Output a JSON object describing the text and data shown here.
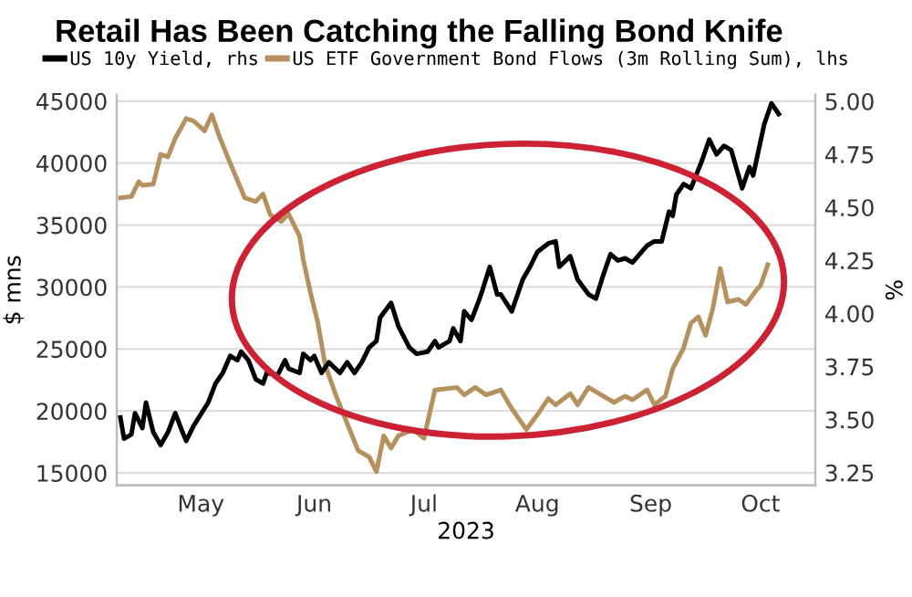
{
  "chart_data": {
    "type": "line",
    "title": "Retail Has Been Catching the Falling Bond Knife",
    "xlabel": "2023",
    "ylabel": "$ mns",
    "y2label": "%",
    "series": [
      {
        "name": "US 10y Yield, rhs",
        "color": "#000000",
        "axis": "y2",
        "x": [
          "2023-04-24",
          "2023-04-25",
          "2023-04-27",
          "2023-04-28",
          "2023-04-30",
          "2023-05-01",
          "2023-05-03",
          "2023-05-05",
          "2023-05-07",
          "2023-05-09",
          "2023-05-11",
          "2023-05-12",
          "2023-05-14",
          "2023-05-18",
          "2023-05-20",
          "2023-05-22",
          "2023-05-24",
          "2023-05-26",
          "2023-05-27",
          "2023-05-29",
          "2023-05-31",
          "2023-06-02",
          "2023-06-03",
          "2023-06-06",
          "2023-06-08",
          "2023-06-09",
          "2023-06-12",
          "2023-06-13",
          "2023-06-15",
          "2023-06-16",
          "2023-06-18",
          "2023-06-20",
          "2023-06-23",
          "2023-06-25",
          "2023-06-27",
          "2023-06-29",
          "2023-07-01",
          "2023-07-03",
          "2023-07-04",
          "2023-07-07",
          "2023-07-09",
          "2023-07-12",
          "2023-07-14",
          "2023-07-17",
          "2023-07-19",
          "2023-07-20",
          "2023-07-23",
          "2023-07-24",
          "2023-07-26",
          "2023-07-27",
          "2023-07-29",
          "2023-07-31",
          "2023-08-01",
          "2023-08-03",
          "2023-08-05",
          "2023-08-06",
          "2023-08-09",
          "2023-08-12",
          "2023-08-14",
          "2023-08-16",
          "2023-08-19",
          "2023-08-21",
          "2023-08-22",
          "2023-08-25",
          "2023-08-27",
          "2023-08-30",
          "2023-09-01",
          "2023-09-03",
          "2023-09-05",
          "2023-09-07",
          "2023-09-09",
          "2023-09-11",
          "2023-09-14",
          "2023-09-15",
          "2023-09-17",
          "2023-09-19",
          "2023-09-21",
          "2023-09-22",
          "2023-09-23",
          "2023-09-25",
          "2023-09-27",
          "2023-09-30",
          "2023-10-02",
          "2023-10-04",
          "2023-10-06",
          "2023-10-08",
          "2023-10-11",
          "2023-10-13",
          "2023-10-14",
          "2023-10-16",
          "2023-10-17",
          "2023-10-19",
          "2023-10-21"
        ],
        "values": [
          3.51,
          3.41,
          3.43,
          3.53,
          3.46,
          3.58,
          3.44,
          3.38,
          3.44,
          3.53,
          3.44,
          3.4,
          3.47,
          3.58,
          3.67,
          3.72,
          3.8,
          3.78,
          3.82,
          3.78,
          3.69,
          3.67,
          3.72,
          3.71,
          3.78,
          3.74,
          3.72,
          3.81,
          3.78,
          3.8,
          3.72,
          3.77,
          3.72,
          3.77,
          3.72,
          3.77,
          3.84,
          3.87,
          3.98,
          4.05,
          3.94,
          3.84,
          3.81,
          3.82,
          3.87,
          3.84,
          3.87,
          3.93,
          3.87,
          4.01,
          3.97,
          4.06,
          4.11,
          4.22,
          4.09,
          4.09,
          4.01,
          4.16,
          4.22,
          4.29,
          4.33,
          4.34,
          4.22,
          4.27,
          4.16,
          4.09,
          4.07,
          4.18,
          4.28,
          4.25,
          4.26,
          4.24,
          4.3,
          4.32,
          4.34,
          4.34,
          4.48,
          4.46,
          4.56,
          4.61,
          4.59,
          4.72,
          4.82,
          4.75,
          4.79,
          4.77,
          4.59,
          4.69,
          4.65,
          4.81,
          4.89,
          4.99,
          4.94
        ]
      },
      {
        "name": "US ETF Government Bond Flows (3m Rolling Sum), lhs",
        "color": "#b5915f",
        "x": [
          "2023-04-24",
          "2023-04-27",
          "2023-04-29",
          "2023-04-30",
          "2023-05-03",
          "2023-05-05",
          "2023-05-07",
          "2023-05-09",
          "2023-05-12",
          "2023-05-14",
          "2023-05-17",
          "2023-05-19",
          "2023-05-21",
          "2023-05-24",
          "2023-05-28",
          "2023-05-31",
          "2023-06-02",
          "2023-06-04",
          "2023-06-07",
          "2023-06-09",
          "2023-06-12",
          "2023-06-13",
          "2023-06-15",
          "2023-06-17",
          "2023-06-19",
          "2023-06-22",
          "2023-06-25",
          "2023-06-28",
          "2023-07-01",
          "2023-07-03",
          "2023-07-05",
          "2023-07-07",
          "2023-07-09",
          "2023-07-13",
          "2023-07-16",
          "2023-07-19",
          "2023-07-25",
          "2023-07-27",
          "2023-07-30",
          "2023-08-02",
          "2023-08-06",
          "2023-08-09",
          "2023-08-13",
          "2023-08-16",
          "2023-08-19",
          "2023-08-21",
          "2023-08-25",
          "2023-08-27",
          "2023-08-30",
          "2023-09-03",
          "2023-09-06",
          "2023-09-09",
          "2023-09-11",
          "2023-09-15",
          "2023-09-17",
          "2023-09-20",
          "2023-09-22",
          "2023-09-25",
          "2023-09-27",
          "2023-09-29",
          "2023-10-01",
          "2023-10-03",
          "2023-10-05",
          "2023-10-07",
          "2023-10-10",
          "2023-10-12",
          "2023-10-15",
          "2023-10-16",
          "2023-10-18"
        ],
        "values": [
          37200,
          37300,
          38500,
          38200,
          38300,
          40700,
          40500,
          42000,
          43600,
          43400,
          42600,
          43900,
          42200,
          40000,
          37200,
          36900,
          37500,
          35800,
          35300,
          35900,
          34100,
          32200,
          29500,
          27100,
          23700,
          21200,
          19000,
          16800,
          16300,
          15100,
          18000,
          17000,
          18000,
          18500,
          17800,
          21700,
          21900,
          21300,
          21900,
          21300,
          21700,
          20200,
          18500,
          19700,
          21000,
          20500,
          21400,
          20500,
          21900,
          21200,
          20700,
          21200,
          20900,
          21700,
          20500,
          21200,
          23400,
          25100,
          27100,
          27600,
          26100,
          28300,
          31500,
          28800,
          29000,
          28600,
          29800,
          30100,
          31800
        ]
      }
    ],
    "xlim": [
      "2023-04-23",
      "2023-10-31"
    ],
    "xticks": [
      {
        "value": "2023-05-16",
        "label": "May"
      },
      {
        "value": "2023-06-16",
        "label": "Jun"
      },
      {
        "value": "2023-07-16",
        "label": "Jul"
      },
      {
        "value": "2023-08-16",
        "label": "Aug"
      },
      {
        "value": "2023-09-16",
        "label": "Sep"
      },
      {
        "value": "2023-10-16",
        "label": "Oct"
      }
    ],
    "ylim": [
      14000,
      45500
    ],
    "yticks": [
      15000,
      20000,
      25000,
      30000,
      35000,
      40000,
      45000
    ],
    "y2lim": [
      3.19,
      5.03
    ],
    "y2ticks": [
      {
        "value": 3.25,
        "label": "3.25"
      },
      {
        "value": 3.5,
        "label": "3.50"
      },
      {
        "value": 3.75,
        "label": "3.75"
      },
      {
        "value": 4.0,
        "label": "4.00"
      },
      {
        "value": 4.25,
        "label": "4.25"
      },
      {
        "value": 4.5,
        "label": "4.50"
      },
      {
        "value": 4.75,
        "label": "4.75"
      },
      {
        "value": 5.0,
        "label": "5.00"
      }
    ],
    "grid": "y",
    "legend": "top",
    "line_style": "solid",
    "marker": "none"
  }
}
